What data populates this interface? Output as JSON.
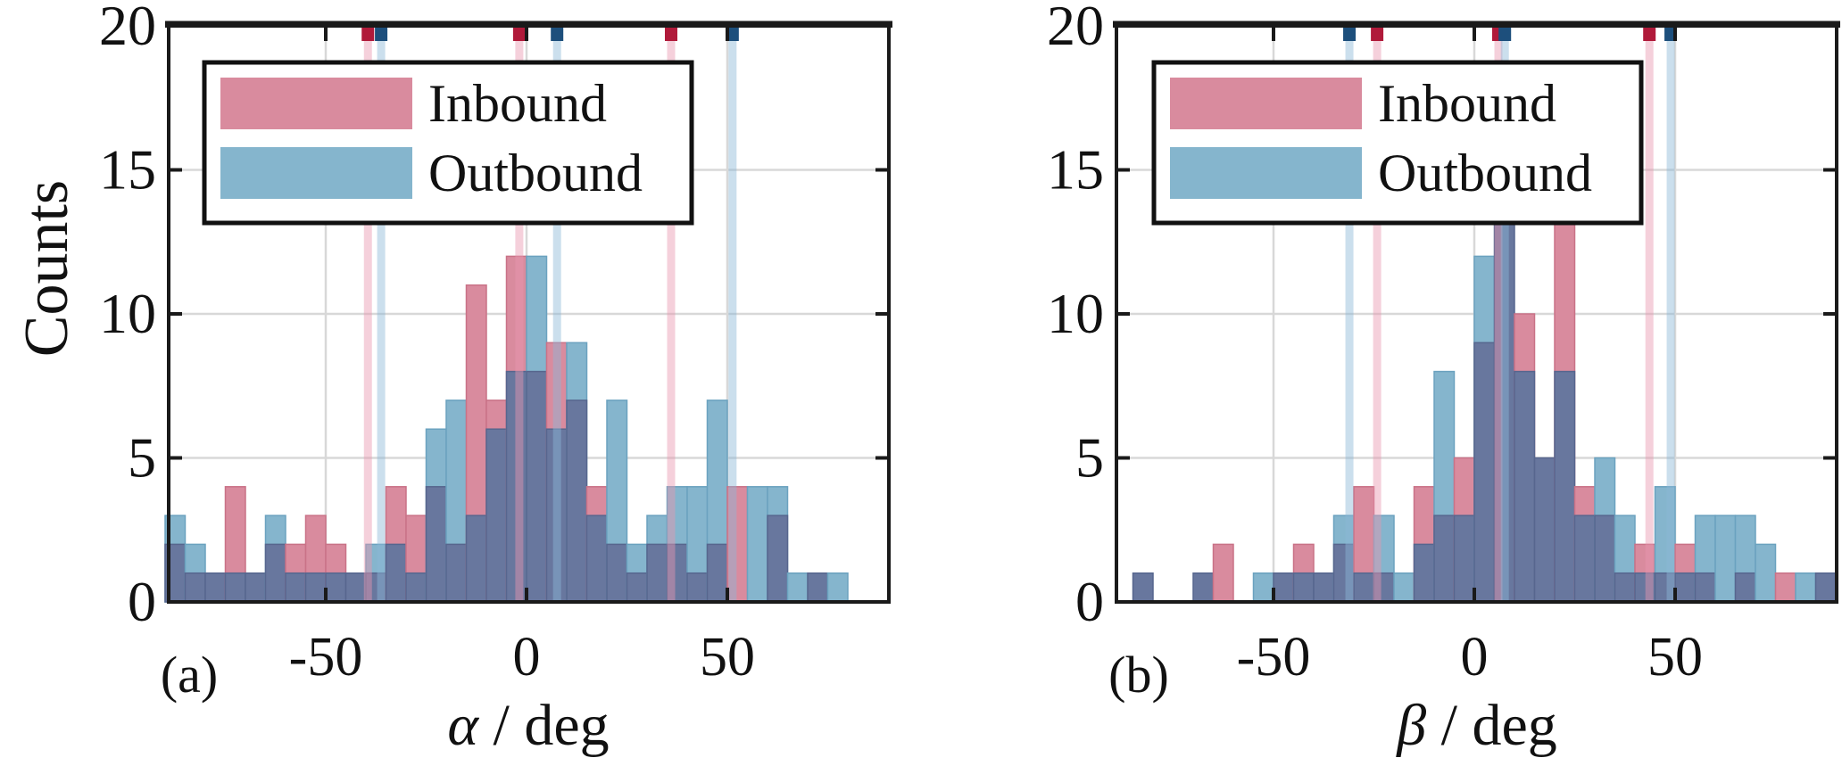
{
  "figure_type": "two-panel overlapping histograms",
  "labels": {
    "ylabel": "Counts",
    "panel_a_tag": "(a)",
    "panel_b_tag": "(b)",
    "xlabel_a_symbol": "α",
    "xlabel_b_symbol": "β",
    "xlabel_rest": " / deg"
  },
  "legend": {
    "items": [
      {
        "label": "Inbound",
        "color": "#d98b9e"
      },
      {
        "label": "Outbound",
        "color": "#85b5cd"
      }
    ]
  },
  "colors": {
    "inbound_fill": "#d98b9e",
    "outbound_fill": "#85b5cd",
    "overlap_fill": "#68779e",
    "inbound_edge": "#c97287",
    "outbound_edge": "#6ba2bf",
    "overlap_edge": "#57668e",
    "inbound_marker_line": "rgba(233,150,175,0.45)",
    "outbound_marker_line": "rgba(140,185,215,0.45)",
    "inbound_marker_square": "#b01a3a",
    "outbound_marker_square": "#1d4f7c",
    "gridline": "#d8d8d8",
    "spine": "#1a1a1a",
    "background": "#ffffff"
  },
  "chart_data": [
    {
      "type": "bar",
      "subtype": "overlapping-histogram",
      "panel_tag": "(a)",
      "xlabel": "alpha / deg",
      "ylabel": "Counts",
      "bin_start": -90,
      "bin_width": 5,
      "xlim": [
        -90,
        90
      ],
      "ylim": [
        0,
        20
      ],
      "xticks": [
        -50,
        0,
        50
      ],
      "yticks": [
        0,
        5,
        10,
        15,
        20
      ],
      "grid": true,
      "legend_position": "upper left",
      "series": [
        {
          "name": "Inbound",
          "values": [
            2,
            1,
            1,
            4,
            1,
            2,
            2,
            3,
            2,
            1,
            1,
            4,
            3,
            4,
            2,
            11,
            7,
            12,
            8,
            9,
            7,
            4,
            2,
            1,
            2,
            2,
            1,
            2,
            4,
            0,
            3,
            0,
            1,
            0,
            0,
            0
          ]
        },
        {
          "name": "Outbound",
          "values": [
            3,
            2,
            1,
            1,
            1,
            3,
            1,
            1,
            1,
            1,
            2,
            2,
            1,
            6,
            7,
            3,
            6,
            8,
            12,
            6,
            9,
            3,
            7,
            2,
            3,
            4,
            4,
            7,
            0,
            4,
            4,
            1,
            1,
            1,
            0,
            0
          ]
        }
      ],
      "marker_lines_deg": {
        "Inbound": [
          -39.5,
          -1.8,
          36.0
        ],
        "Outbound": [
          -36.2,
          7.6,
          51.3
        ]
      }
    },
    {
      "type": "bar",
      "subtype": "overlapping-histogram",
      "panel_tag": "(b)",
      "xlabel": "beta / deg",
      "ylabel": "Counts",
      "bin_start": -90,
      "bin_width": 5,
      "xlim": [
        -90,
        90
      ],
      "ylim": [
        0,
        20
      ],
      "xticks": [
        -50,
        0,
        50
      ],
      "yticks": [
        0,
        5,
        10,
        15,
        20
      ],
      "grid": true,
      "legend_position": "upper left",
      "series": [
        {
          "name": "Inbound",
          "values": [
            0,
            1,
            0,
            0,
            1,
            2,
            0,
            0,
            1,
            2,
            1,
            2,
            4,
            1,
            0,
            4,
            3,
            5,
            9,
            14,
            10,
            5,
            14,
            4,
            3,
            1,
            2,
            1,
            2,
            1,
            0,
            1,
            0,
            1,
            0,
            1
          ]
        },
        {
          "name": "Outbound",
          "values": [
            0,
            1,
            0,
            0,
            1,
            0,
            0,
            1,
            1,
            1,
            1,
            3,
            1,
            3,
            1,
            2,
            8,
            3,
            12,
            14,
            8,
            5,
            8,
            3,
            5,
            3,
            1,
            4,
            1,
            3,
            3,
            3,
            2,
            0,
            1,
            1
          ]
        }
      ],
      "marker_lines_deg": {
        "Inbound": [
          -24.2,
          6.0,
          43.6
        ],
        "Outbound": [
          -31.1,
          7.6,
          48.9
        ]
      }
    }
  ]
}
